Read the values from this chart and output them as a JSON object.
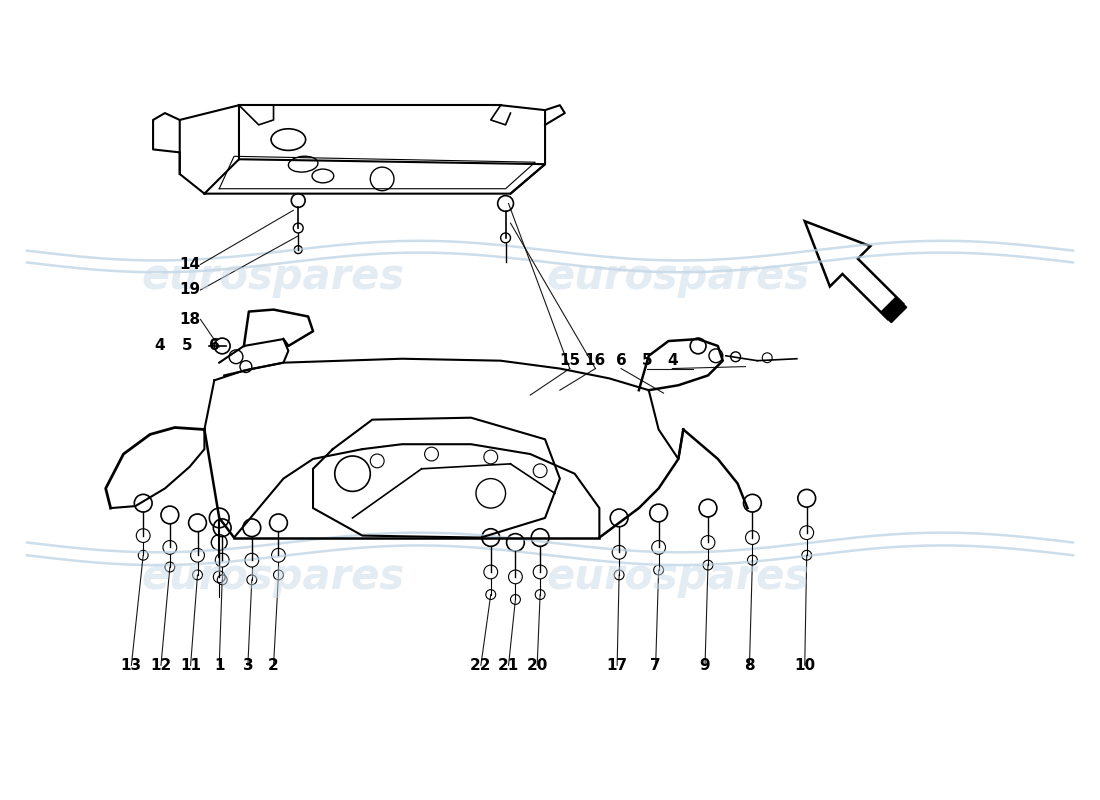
{
  "bg_color": "#ffffff",
  "watermark_text": "eurospares",
  "watermark_color": "#c8d8e8",
  "line_color": "#000000",
  "wave_color": "#b8cfe0"
}
